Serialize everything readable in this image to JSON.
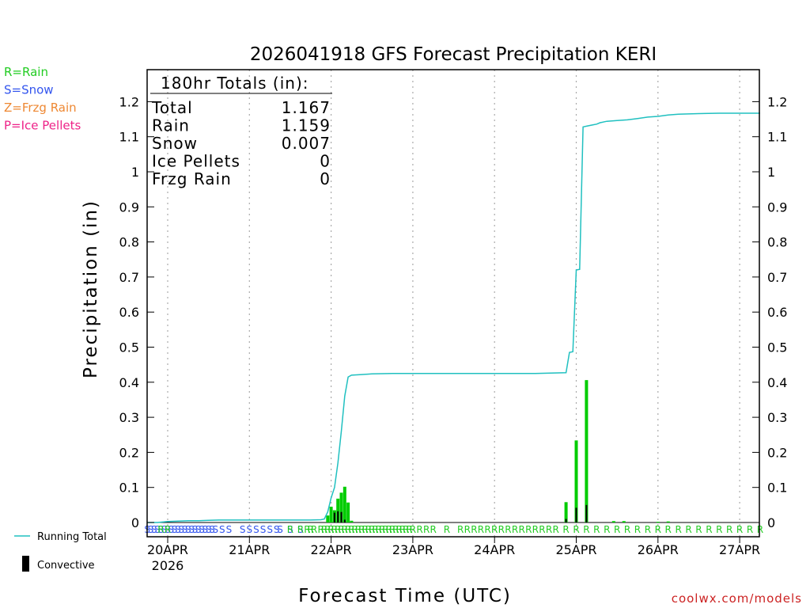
{
  "chart_data": {
    "type": "bar",
    "title": "2026041918 GFS Forecast Precipitation KERI",
    "xlabel": "Forecast Time (UTC)",
    "ylabel": "Precipitation (in)",
    "ylim": [
      0,
      1.27
    ],
    "yticks": [
      0,
      0.1,
      0.2,
      0.3,
      0.4,
      0.5,
      0.6,
      0.7,
      0.8,
      0.9,
      1,
      1.1,
      1.2
    ],
    "ytick_labels": [
      "0",
      "0.1",
      "0.2",
      "0.3",
      "0.4",
      "0.5",
      "0.6",
      "0.7",
      "0.8",
      "0.9",
      "1",
      "1.1",
      "1.2"
    ],
    "xlim_hours": [
      -9,
      177
    ],
    "xticks": [
      {
        "hour": 0,
        "label": "20APR"
      },
      {
        "hour": 24,
        "label": "21APR"
      },
      {
        "hour": 48,
        "label": "22APR"
      },
      {
        "hour": 72,
        "label": "23APR"
      },
      {
        "hour": 96,
        "label": "24APR"
      },
      {
        "hour": 120,
        "label": "25APR"
      },
      {
        "hour": 144,
        "label": "26APR"
      },
      {
        "hour": 168,
        "label": "27APR"
      }
    ],
    "year_label": "2026",
    "grid": "vertical-dotted",
    "totals_box": {
      "title": "180hr Totals (in):",
      "rows": [
        {
          "label": "Total",
          "value": "1.167"
        },
        {
          "label": "Rain",
          "value": "1.159"
        },
        {
          "label": "Snow",
          "value": "0.007"
        },
        {
          "label": "Ice Pellets",
          "value": "0"
        },
        {
          "label": "Frzg Rain",
          "value": "0"
        }
      ]
    },
    "series": [
      {
        "name": "Running Total",
        "color": "#20c0c0",
        "x_hours": [
          -6,
          -3,
          0,
          3,
          6,
          9,
          12,
          15,
          18,
          21,
          24,
          27,
          30,
          33,
          36,
          39,
          42,
          45,
          46,
          47,
          48,
          49,
          50,
          51,
          52,
          53,
          54,
          57,
          60,
          66,
          72,
          84,
          96,
          108,
          117,
          118,
          119,
          120,
          121,
          122,
          123,
          124,
          125,
          126,
          127,
          129,
          132,
          135,
          138,
          141,
          144,
          147,
          150,
          153,
          156,
          162,
          168,
          174
        ],
        "values": [
          0,
          0,
          0.003,
          0.004,
          0.005,
          0.005,
          0.006,
          0.007,
          0.007,
          0.007,
          0.007,
          0.007,
          0.007,
          0.007,
          0.007,
          0.007,
          0.007,
          0.008,
          0.01,
          0.03,
          0.07,
          0.1,
          0.17,
          0.26,
          0.36,
          0.415,
          0.42,
          0.422,
          0.424,
          0.425,
          0.425,
          0.425,
          0.425,
          0.425,
          0.427,
          0.485,
          0.487,
          0.72,
          0.722,
          1.128,
          1.13,
          1.132,
          1.134,
          1.136,
          1.14,
          1.144,
          1.146,
          1.148,
          1.152,
          1.156,
          1.158,
          1.162,
          1.164,
          1.165,
          1.166,
          1.167,
          1.167,
          1.167
        ]
      },
      {
        "name": "Precipitation",
        "color": "#00cc00",
        "x_hours": [
          47,
          48,
          49,
          50,
          51,
          52,
          53,
          54,
          117,
          120,
          123,
          131,
          134,
          144,
          147
        ],
        "values": [
          0.02,
          0.045,
          0.035,
          0.068,
          0.085,
          0.102,
          0.057,
          0.005,
          0.058,
          0.234,
          0.406,
          0.004,
          0.004,
          0.002,
          0.003
        ]
      },
      {
        "name": "Convective",
        "color": "#000000",
        "x_hours": [
          49,
          50,
          51,
          52,
          117,
          120,
          123
        ],
        "values": [
          0.028,
          0.032,
          0.03,
          0.008,
          0.01,
          0.042,
          0.05
        ]
      }
    ],
    "ptype_strip": {
      "snow_letter": "S",
      "rain_letter": "R",
      "snow_hours": [
        -6,
        -5,
        -4,
        -3,
        -2,
        -1,
        0,
        1,
        2,
        3,
        4,
        5,
        6,
        7,
        8,
        9,
        10,
        11,
        12,
        13,
        14,
        16,
        18,
        22,
        24,
        26,
        28,
        30,
        32,
        33,
        36,
        39
      ],
      "rain_hours": [
        -2,
        0,
        36,
        39,
        41,
        42,
        43,
        45,
        46,
        47,
        48,
        49,
        50,
        51,
        52,
        53,
        54,
        55,
        56,
        57,
        58,
        59,
        60,
        61,
        62,
        63,
        64,
        65,
        66,
        67,
        68,
        69,
        70,
        71,
        72,
        74,
        76,
        78,
        82,
        86,
        88,
        90,
        92,
        94,
        96,
        98,
        100,
        102,
        104,
        106,
        108,
        110,
        112,
        114,
        117,
        120,
        123,
        126,
        129,
        132,
        135,
        138,
        141,
        144,
        147,
        150,
        153,
        156,
        159,
        162,
        165,
        168,
        171,
        174
      ]
    },
    "legend_type": [
      {
        "text": "R=Rain",
        "color": "#22cc22"
      },
      {
        "text": "S=Snow",
        "color": "#3355ee"
      },
      {
        "text": "Z=Frzg Rain",
        "color": "#ee8833"
      },
      {
        "text": "P=Ice Pellets",
        "color": "#ee2288"
      }
    ],
    "legend_lines": [
      {
        "text": "Running Total",
        "color": "#20c0c0"
      },
      {
        "text": "Convective",
        "color": "#000000"
      }
    ],
    "credit": "coolwx.com/models"
  }
}
